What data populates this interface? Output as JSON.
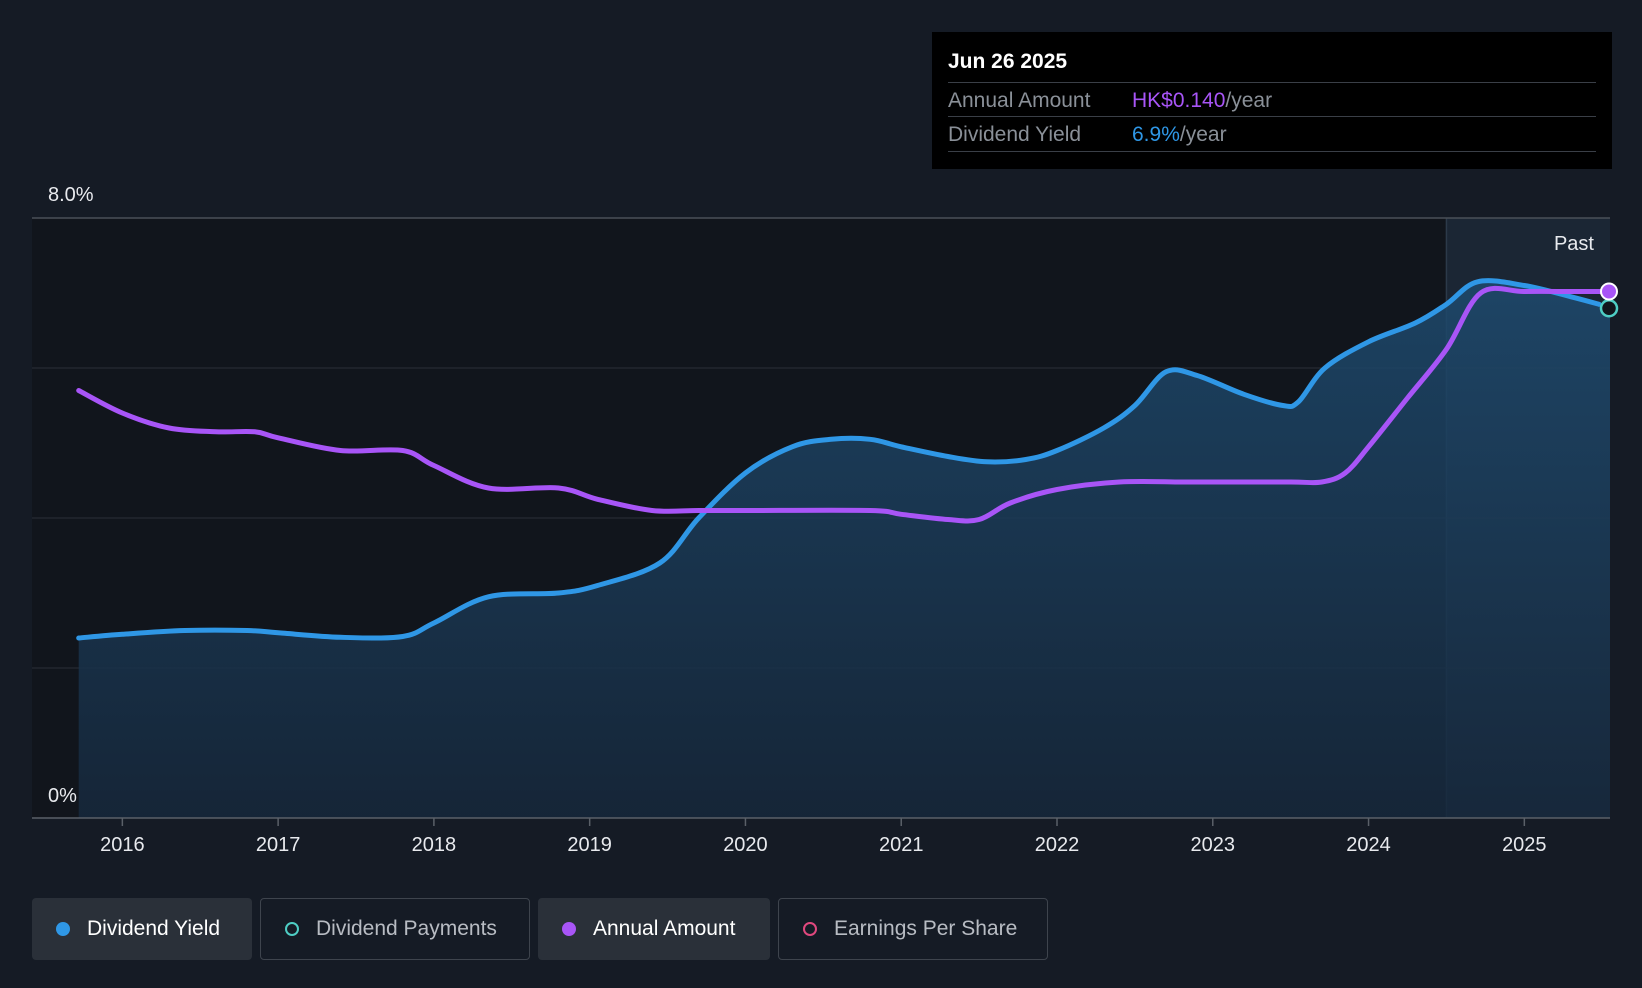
{
  "tooltip": {
    "date": "Jun 26 2025",
    "rows": [
      {
        "label": "Annual Amount",
        "value": "HK$0.140",
        "unit": "/year",
        "color": "#a855f7"
      },
      {
        "label": "Dividend Yield",
        "value": "6.9%",
        "unit": "/year",
        "color": "#2f97e6"
      }
    ]
  },
  "legend": [
    {
      "label": "Dividend Yield",
      "color": "#2f97e6",
      "style": "filled",
      "active": true
    },
    {
      "label": "Dividend Payments",
      "color": "#4ecdc4",
      "style": "ring",
      "active": false
    },
    {
      "label": "Annual Amount",
      "color": "#a855f7",
      "style": "filled",
      "active": true
    },
    {
      "label": "Earnings Per Share",
      "color": "#e0487e",
      "style": "ring",
      "active": false
    }
  ],
  "chart_data": {
    "type": "line",
    "title": "",
    "xlabel": "",
    "ylabel": "",
    "y_tick_labels": [
      "8.0%",
      "0%"
    ],
    "ylim": [
      0,
      8
    ],
    "xlim": [
      2015.42,
      2025.55
    ],
    "x_ticks": [
      2016,
      2017,
      2018,
      2019,
      2020,
      2021,
      2022,
      2023,
      2024,
      2025
    ],
    "x_tick_labels": [
      "2016",
      "2017",
      "2018",
      "2019",
      "2020",
      "2021",
      "2022",
      "2023",
      "2024",
      "2025"
    ],
    "past_region": {
      "label": "Past",
      "start": 2024.5
    },
    "colors": {
      "yield": "#2f97e6",
      "amount": "#a855f7"
    },
    "series": [
      {
        "name": "Dividend Yield",
        "unit": "%",
        "points": [
          [
            2015.72,
            2.4
          ],
          [
            2016.0,
            2.45
          ],
          [
            2016.4,
            2.5
          ],
          [
            2016.8,
            2.5
          ],
          [
            2017.0,
            2.47
          ],
          [
            2017.4,
            2.41
          ],
          [
            2017.8,
            2.42
          ],
          [
            2018.0,
            2.6
          ],
          [
            2018.35,
            2.95
          ],
          [
            2018.8,
            3.0
          ],
          [
            2019.05,
            3.1
          ],
          [
            2019.45,
            3.4
          ],
          [
            2019.7,
            4.0
          ],
          [
            2020.0,
            4.6
          ],
          [
            2020.3,
            4.95
          ],
          [
            2020.55,
            5.05
          ],
          [
            2020.8,
            5.05
          ],
          [
            2021.0,
            4.95
          ],
          [
            2021.3,
            4.82
          ],
          [
            2021.55,
            4.75
          ],
          [
            2021.8,
            4.78
          ],
          [
            2022.0,
            4.9
          ],
          [
            2022.3,
            5.2
          ],
          [
            2022.5,
            5.5
          ],
          [
            2022.7,
            5.95
          ],
          [
            2022.9,
            5.9
          ],
          [
            2023.2,
            5.65
          ],
          [
            2023.45,
            5.5
          ],
          [
            2023.55,
            5.55
          ],
          [
            2023.72,
            6.0
          ],
          [
            2024.0,
            6.35
          ],
          [
            2024.3,
            6.6
          ],
          [
            2024.5,
            6.85
          ],
          [
            2024.7,
            7.15
          ],
          [
            2025.0,
            7.1
          ],
          [
            2025.3,
            6.95
          ],
          [
            2025.48,
            6.85
          ]
        ]
      },
      {
        "name": "Annual Amount",
        "unit": "% scale",
        "points": [
          [
            2015.72,
            5.7
          ],
          [
            2016.0,
            5.4
          ],
          [
            2016.3,
            5.2
          ],
          [
            2016.6,
            5.15
          ],
          [
            2016.85,
            5.15
          ],
          [
            2017.0,
            5.07
          ],
          [
            2017.4,
            4.9
          ],
          [
            2017.8,
            4.9
          ],
          [
            2018.0,
            4.7
          ],
          [
            2018.35,
            4.4
          ],
          [
            2018.8,
            4.4
          ],
          [
            2019.05,
            4.25
          ],
          [
            2019.4,
            4.1
          ],
          [
            2019.7,
            4.1
          ],
          [
            2020.0,
            4.1
          ],
          [
            2020.8,
            4.1
          ],
          [
            2021.0,
            4.05
          ],
          [
            2021.3,
            3.98
          ],
          [
            2021.5,
            3.98
          ],
          [
            2021.7,
            4.2
          ],
          [
            2022.0,
            4.38
          ],
          [
            2022.4,
            4.48
          ],
          [
            2022.8,
            4.48
          ],
          [
            2023.0,
            4.48
          ],
          [
            2023.5,
            4.48
          ],
          [
            2023.7,
            4.48
          ],
          [
            2023.85,
            4.6
          ],
          [
            2024.0,
            4.95
          ],
          [
            2024.25,
            5.6
          ],
          [
            2024.5,
            6.25
          ],
          [
            2024.72,
            7.0
          ],
          [
            2025.0,
            7.02
          ],
          [
            2025.3,
            7.02
          ],
          [
            2025.48,
            7.02
          ]
        ]
      }
    ]
  }
}
